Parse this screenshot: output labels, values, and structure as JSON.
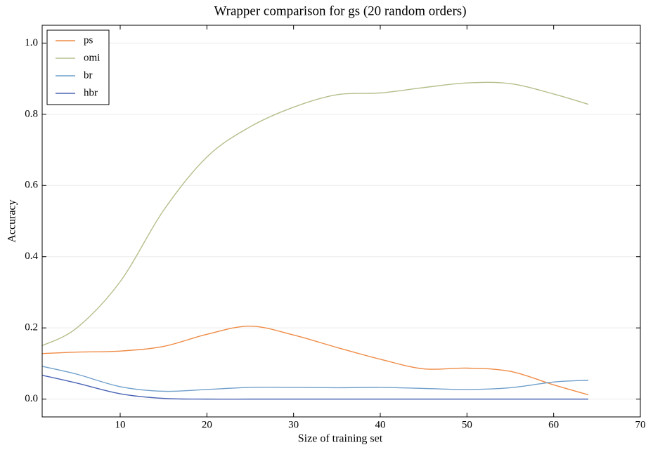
{
  "chart_data": {
    "type": "line",
    "title": "Wrapper comparison for gs (20 random orders)",
    "x_label": "Size of training set",
    "y_label": "Accuracy",
    "x": [
      1,
      5,
      10,
      15,
      20,
      25,
      30,
      35,
      40,
      45,
      50,
      55,
      60,
      64
    ],
    "series": [
      {
        "name": "ps",
        "color": "#ef8b45",
        "values": [
          0.128,
          0.132,
          0.135,
          0.148,
          0.182,
          0.205,
          0.18,
          0.145,
          0.112,
          0.085,
          0.087,
          0.078,
          0.04,
          0.012
        ]
      },
      {
        "name": "omi",
        "color": "#b3bf8b",
        "values": [
          0.15,
          0.2,
          0.33,
          0.53,
          0.68,
          0.765,
          0.82,
          0.855,
          0.86,
          0.875,
          0.888,
          0.886,
          0.857,
          0.828
        ]
      },
      {
        "name": "br",
        "color": "#6f9fcb",
        "values": [
          0.092,
          0.07,
          0.035,
          0.022,
          0.027,
          0.033,
          0.033,
          0.032,
          0.033,
          0.03,
          0.027,
          0.032,
          0.048,
          0.053
        ]
      },
      {
        "name": "hbr",
        "color": "#4a63b4",
        "values": [
          0.067,
          0.045,
          0.015,
          0.002,
          0,
          0,
          0,
          0,
          0,
          0,
          0,
          0,
          0,
          0
        ]
      }
    ],
    "xlim": [
      1,
      70
    ],
    "ylim": [
      -0.05,
      1.05
    ],
    "xticks": [
      10,
      20,
      30,
      40,
      50,
      60,
      70
    ],
    "yticks": [
      {
        "value": 0,
        "label": "0.0"
      },
      {
        "value": 0.2,
        "label": "0.2"
      },
      {
        "value": 0.4,
        "label": "0.4"
      },
      {
        "value": 0.6,
        "label": "0.6"
      },
      {
        "value": 0.8,
        "label": "0.8"
      },
      {
        "value": 1,
        "label": "1.0"
      }
    ],
    "grid": true,
    "legend": "upper left"
  }
}
